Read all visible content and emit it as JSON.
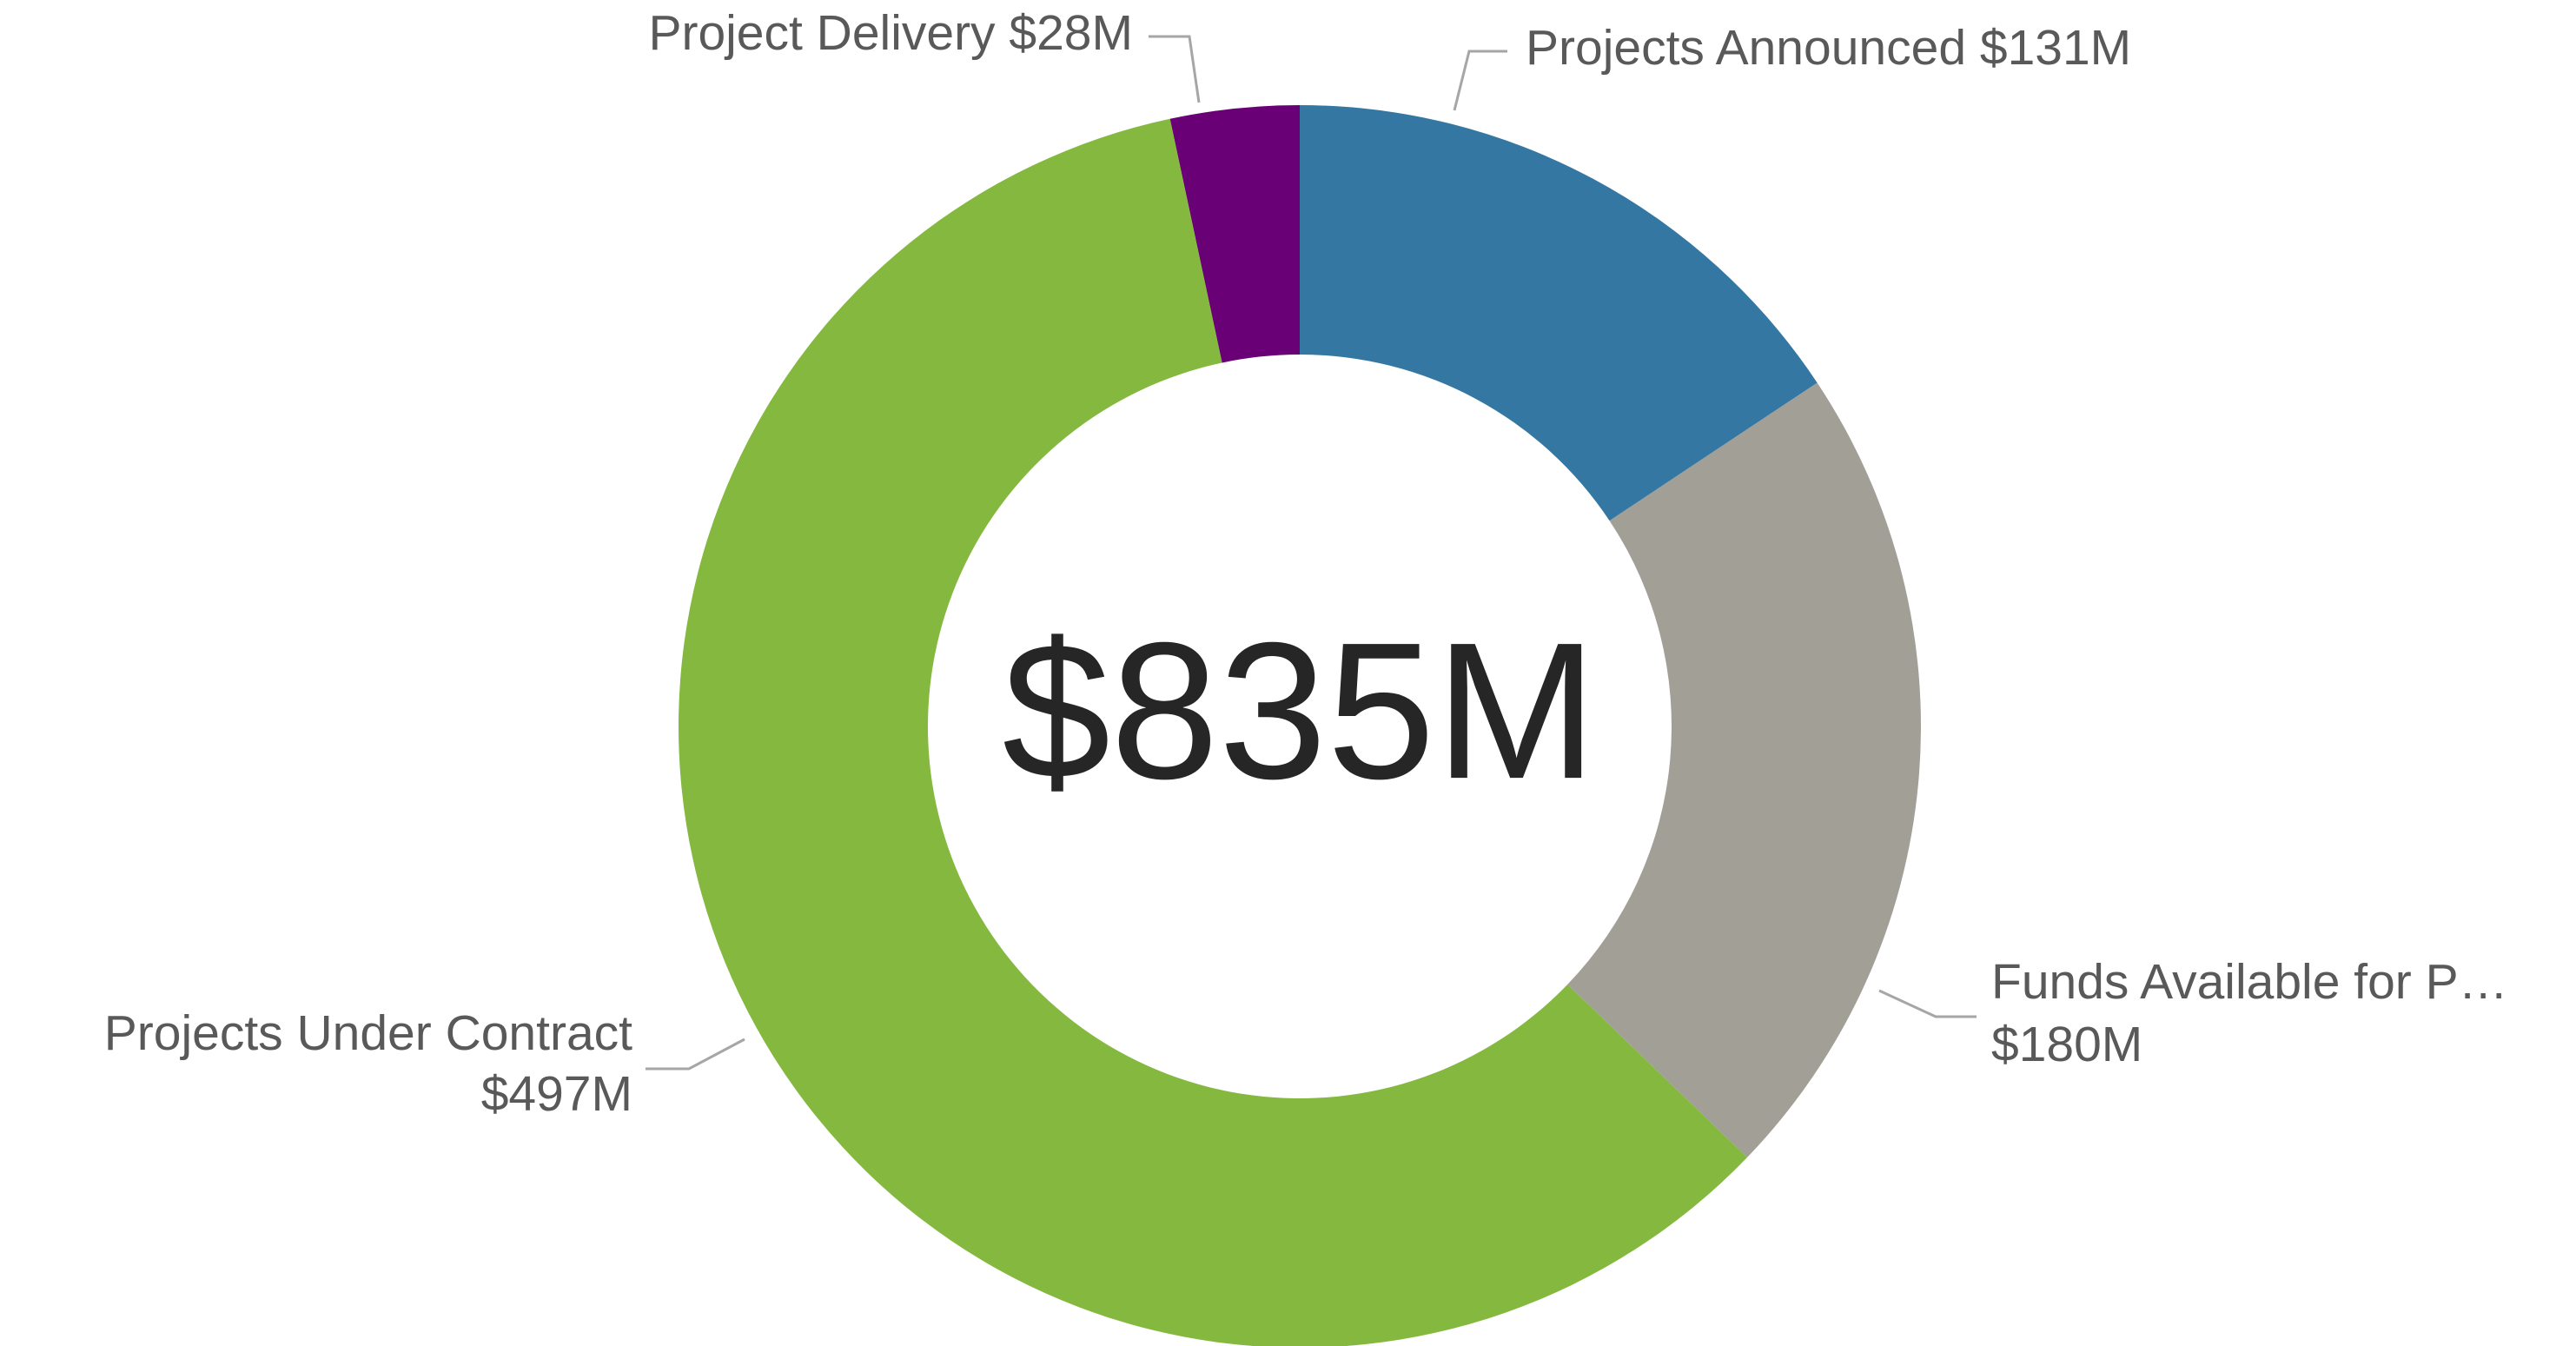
{
  "chart_data": {
    "type": "donut",
    "center_label": "$835M",
    "categories": [
      "Projects Announced",
      "Funds Available for P…",
      "Projects Under Contract",
      "Project Delivery"
    ],
    "values": [
      131,
      180,
      497,
      28
    ],
    "value_labels": [
      "$131M",
      "$180M",
      "$497M",
      "$28M"
    ],
    "colors": [
      "#3577a3",
      "#a29f97",
      "#84b83f",
      "#6a0076"
    ]
  }
}
